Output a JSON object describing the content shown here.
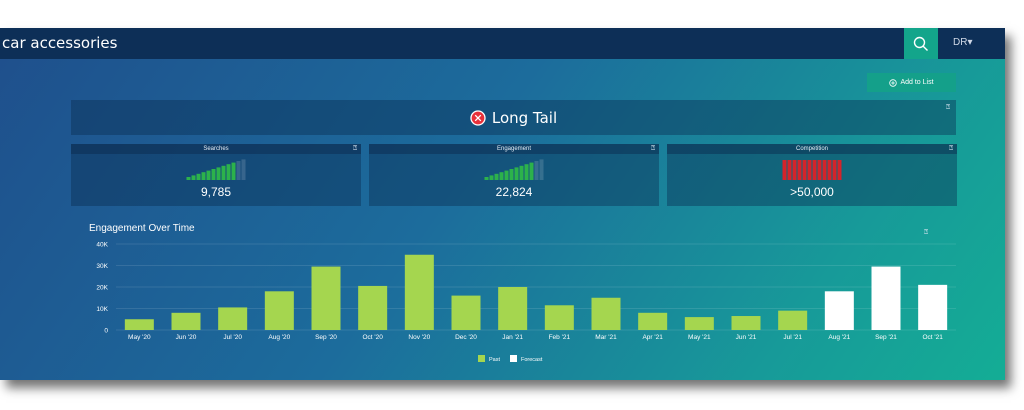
{
  "header": {
    "title": "car accessories",
    "user": "DR▾"
  },
  "toolbar": {
    "add_label": "Add to List"
  },
  "keyword_type": {
    "label": "Long Tail"
  },
  "metrics": [
    {
      "label": "Searches",
      "value": "9,785",
      "color": "#2cb24b",
      "level": 0.8
    },
    {
      "label": "Engagement",
      "value": "22,824",
      "color": "#2cb24b",
      "level": 0.8
    },
    {
      "label": "Competition",
      "value": ">50,000",
      "color": "#d4242b",
      "level": 1.0
    }
  ],
  "colors": {
    "past": "#a5d64f",
    "forecast": "#ffffff",
    "accent": "#14a08a"
  },
  "chart_data": {
    "type": "bar",
    "title": "Engagement Over Time",
    "categories": [
      "May '20",
      "Jun '20",
      "Jul '20",
      "Aug '20",
      "Sep '20",
      "Oct '20",
      "Nov '20",
      "Dec '20",
      "Jan '21",
      "Feb '21",
      "Mar '21",
      "Apr '21",
      "May '21",
      "Jun '21",
      "Jul '21",
      "Aug '21",
      "Sep '21",
      "Oct '21"
    ],
    "values": [
      5000,
      8000,
      10500,
      18000,
      29500,
      20500,
      35000,
      16000,
      20000,
      11500,
      15000,
      8000,
      6000,
      6500,
      9000,
      18000,
      29500,
      21000
    ],
    "series_type": [
      "Past",
      "Past",
      "Past",
      "Past",
      "Past",
      "Past",
      "Past",
      "Past",
      "Past",
      "Past",
      "Past",
      "Past",
      "Past",
      "Past",
      "Past",
      "Forecast",
      "Forecast",
      "Forecast"
    ],
    "ylim": [
      0,
      40000
    ],
    "yticks": [
      "0",
      "10K",
      "20K",
      "30K",
      "40K"
    ],
    "legend": [
      "Past",
      "Forecast"
    ],
    "legend_position": "bottom",
    "grid": true
  }
}
